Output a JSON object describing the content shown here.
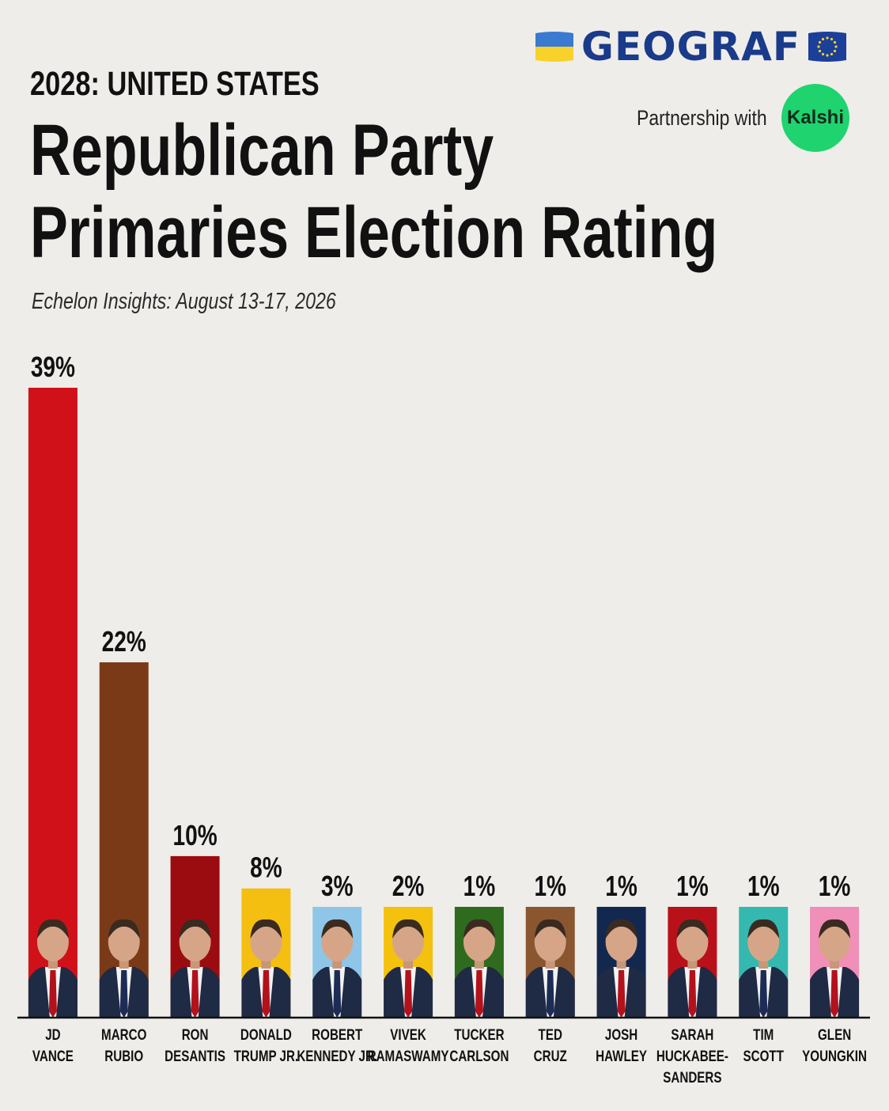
{
  "brand": {
    "name": "GEOGRAF",
    "left_flag_icon": "ukraine-flag-icon",
    "right_flag_icon": "eu-flag-icon",
    "partner_text": "Partnership with",
    "partner_logo": "Kalshi"
  },
  "header": {
    "eyebrow": "2028: UNITED STATES",
    "title_line1": "Republican Party",
    "title_line2": "Primaries Election Rating",
    "source": "Echelon Insights: August 13-17, 2026"
  },
  "chart_data": {
    "type": "bar",
    "title": "Republican Party Primaries Election Rating",
    "xlabel": "",
    "ylabel": "",
    "ylim": [
      0,
      39
    ],
    "unit": "%",
    "grid": false,
    "legend": "none",
    "categories": [
      [
        "JD",
        "VANCE"
      ],
      [
        "MARCO",
        "RUBIO"
      ],
      [
        "RON",
        "DESANTIS"
      ],
      [
        "DONALD",
        "TRUMP JR."
      ],
      [
        "ROBERT",
        "KENNEDY JR."
      ],
      [
        "VIVEK",
        "RAMASWAMY"
      ],
      [
        "TUCKER",
        "CARLSON"
      ],
      [
        "TED",
        "CRUZ"
      ],
      [
        "JOSH",
        "HAWLEY"
      ],
      [
        "SARAH",
        "HUCKABEE-",
        "SANDERS"
      ],
      [
        "TIM",
        "SCOTT"
      ],
      [
        "GLEN",
        "YOUNGKIN"
      ]
    ],
    "values": [
      39,
      22,
      10,
      8,
      3,
      2,
      1,
      1,
      1,
      1,
      1,
      1
    ],
    "labels": [
      "39%",
      "22%",
      "10%",
      "8%",
      "3%",
      "2%",
      "1%",
      "1%",
      "1%",
      "1%",
      "1%",
      "1%"
    ],
    "colors": [
      "#d0111a",
      "#7b3a17",
      "#9b0c10",
      "#f4bf10",
      "#8fc6e8",
      "#f4c10f",
      "#2e6b1e",
      "#8a5630",
      "#13284f",
      "#b8111a",
      "#35b8b0",
      "#f08fb8"
    ],
    "has_portraits": true
  }
}
